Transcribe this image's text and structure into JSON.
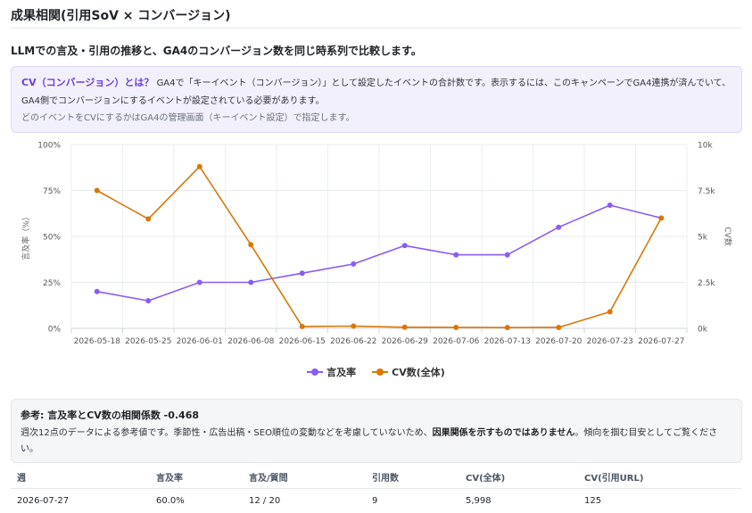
{
  "header": {
    "title": "成果相関(引用SoV × コンバージョン)"
  },
  "lead": "LLMでの言及・引用の推移と、GA4のコンバージョン数を同じ時系列で比較します。",
  "cv_box": {
    "title": "CV（コンバージョン）とは？",
    "text1": "GA4で「キーイベント（コンバージョン）」として設定したイベントの合計数です。表示するには、このキャンペーンでGA4連携が済んでいて、",
    "text2": "GA4側でコンバージョンにするイベントが設定されている必要があります。",
    "note": "どのイベントをCVにするかはGA4の管理画面（キーイベント設定）で指定します。"
  },
  "chart_data": {
    "type": "line",
    "x": [
      "2026-05-18",
      "2026-05-25",
      "2026-06-01",
      "2026-06-08",
      "2026-06-15",
      "2026-06-22",
      "2026-06-29",
      "2026-07-06",
      "2026-07-13",
      "2026-07-20",
      "2026-07-23",
      "2026-07-27"
    ],
    "series": [
      {
        "name": "言及率",
        "axis": "left",
        "color": "#8b5cf6",
        "values": [
          20,
          15,
          25,
          25,
          30,
          35,
          45,
          40,
          40,
          55,
          67,
          60
        ]
      },
      {
        "name": "CV数(全体)",
        "axis": "right",
        "color": "#d97706",
        "values": [
          7500,
          5950,
          8800,
          4550,
          100,
          120,
          60,
          50,
          40,
          50,
          900,
          5998
        ]
      }
    ],
    "ylabel": "言及率（%）",
    "y2label": "CV数",
    "ylim": [
      0,
      100
    ],
    "y2lim": [
      0,
      10000
    ],
    "yticks": [
      "0%",
      "25%",
      "50%",
      "75%",
      "100%"
    ],
    "y2ticks": [
      "0k",
      "2.5k",
      "5k",
      "7.5k",
      "10k"
    ],
    "grid": true,
    "legend": "bottom"
  },
  "correlation": {
    "title": "参考: 言及率とCV数の相関係数 -0.468",
    "text1": "週次12点のデータによる参考値です。季節性・広告出稿・SEO順位の変動などを考慮していないため、",
    "text_bold": "因果関係を示すものではありません",
    "text2": "。傾向を掴む目安としてご覧ください。"
  },
  "table": {
    "headers": [
      "週",
      "言及率",
      "言及/質問",
      "引用数",
      "CV(全体)",
      "CV(引用URL)"
    ],
    "rows": [
      [
        "2026-07-27",
        "60.0%",
        "12 / 20",
        "9",
        "5,998",
        "125"
      ]
    ]
  }
}
